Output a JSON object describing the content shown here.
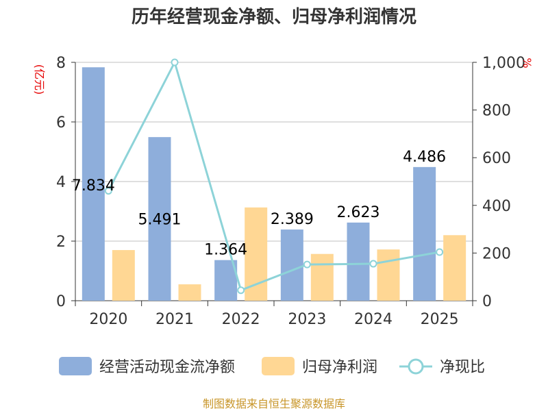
{
  "chart_data": {
    "type": "bar",
    "title": "历年经营现金净额、归母净利润情况",
    "categories": [
      "2020",
      "2021",
      "2022",
      "2023",
      "2024",
      "2025"
    ],
    "series": [
      {
        "name": "经营活动现金流净额",
        "type": "bar",
        "axis": "left",
        "color": "#8eaedb",
        "values": [
          7.834,
          5.491,
          1.364,
          2.389,
          2.623,
          4.486
        ]
      },
      {
        "name": "归母净利润",
        "type": "bar",
        "axis": "left",
        "color": "#ffd794",
        "values": [
          1.7,
          0.55,
          3.13,
          1.57,
          1.72,
          2.2
        ]
      },
      {
        "name": "净现比",
        "type": "line",
        "axis": "right",
        "color": "#8dd3d8",
        "values": [
          461,
          1000,
          44,
          152,
          155,
          204
        ]
      }
    ],
    "data_labels": [
      "7.834",
      "5.491",
      "1.364",
      "2.389",
      "2.623",
      "4.486"
    ],
    "left_axis": {
      "unit": "(亿元)",
      "min": 0,
      "max": 8,
      "ticks": [
        "0",
        "2",
        "4",
        "6",
        "8"
      ]
    },
    "right_axis": {
      "unit": "%",
      "min": 0,
      "max": 1000,
      "ticks": [
        "0",
        "200",
        "400",
        "600",
        "800",
        "1,000"
      ]
    },
    "grid": true,
    "legend_position": "bottom"
  },
  "source_note": "制图数据来自恒生聚源数据库"
}
